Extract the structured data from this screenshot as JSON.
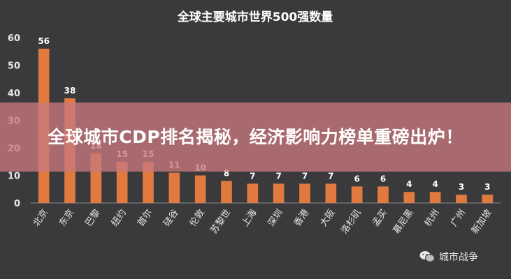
{
  "chart_data": {
    "type": "bar",
    "title": "全球主要城市世界500强数量",
    "categories": [
      "北京",
      "东京",
      "巴黎",
      "纽约",
      "首尔",
      "硅谷",
      "伦敦",
      "苏黎世",
      "上海",
      "深圳",
      "香港",
      "大阪",
      "洛杉矶",
      "孟买",
      "慕尼黑",
      "杭州",
      "广州",
      "新加坡"
    ],
    "values": [
      56,
      38,
      18,
      15,
      15,
      11,
      10,
      8,
      7,
      7,
      7,
      7,
      6,
      6,
      4,
      4,
      3,
      3
    ],
    "yticks": [
      0,
      10,
      20,
      30,
      40,
      50,
      60
    ],
    "ylim": [
      0,
      60
    ],
    "xlabel": "",
    "ylabel": "",
    "grid": false,
    "bar_color": "#e07a3e",
    "background_color": "#3a3a3c"
  },
  "overlay": {
    "headline": "全球城市CDP排名揭秘，经济影响力榜单重磅出炉！",
    "background": "#c8787d"
  },
  "watermark": {
    "icon": "wechat-icon",
    "text": "城市战争"
  }
}
